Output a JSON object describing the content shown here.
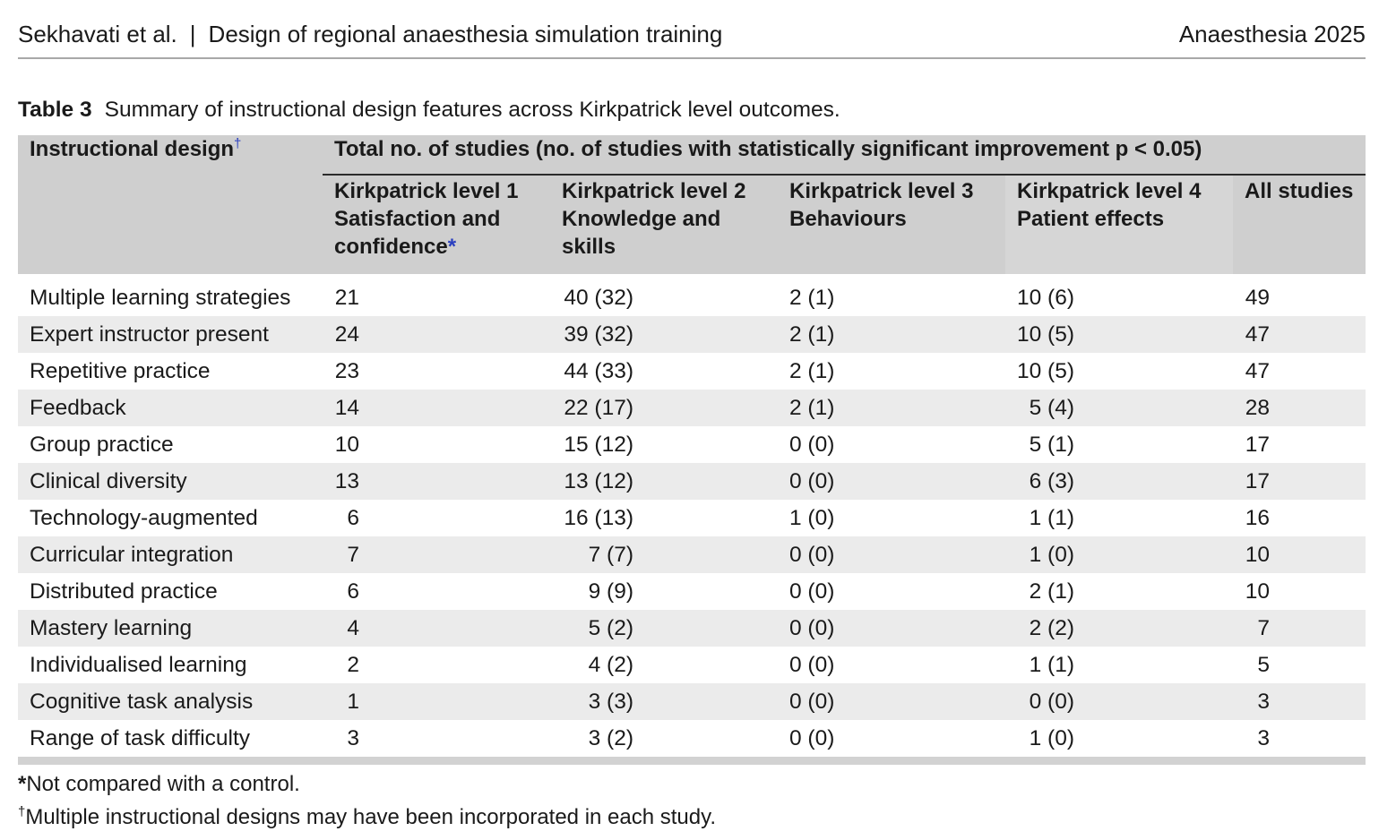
{
  "running_head": {
    "authors": "Sekhavati et al.",
    "separator": "|",
    "title": "Design of regional anaesthesia simulation training",
    "journal": "Anaesthesia 2025"
  },
  "caption": {
    "label": "Table 3",
    "text": "Summary of instructional design features across Kirkpatrick level outcomes."
  },
  "table": {
    "first_header": "Instructional design",
    "first_header_mark": "†",
    "group_header": "Total no. of studies (no. of studies with statistically significant improvement p < 0.05)",
    "columns": [
      {
        "line1": "Kirkpatrick level 1",
        "line2": "Satisfaction and",
        "line3": "confidence",
        "mark": "*"
      },
      {
        "line1": "Kirkpatrick level 2",
        "line2": "Knowledge and",
        "line3": "skills",
        "mark": ""
      },
      {
        "line1": "Kirkpatrick level 3",
        "line2": "Behaviours",
        "line3": "",
        "mark": ""
      },
      {
        "line1": "Kirkpatrick level 4",
        "line2": "Patient effects",
        "line3": "",
        "mark": ""
      },
      {
        "line1": "All studies",
        "line2": "",
        "line3": "",
        "mark": ""
      }
    ],
    "rows": [
      {
        "design": "Multiple learning strategies",
        "k1": "21",
        "k2": "40 (32)",
        "k3": "2 (1)",
        "k4": "10 (6)",
        "all": "49"
      },
      {
        "design": "Expert instructor present",
        "k1": "24",
        "k2": "39 (32)",
        "k3": "2 (1)",
        "k4": "10 (5)",
        "all": "47"
      },
      {
        "design": "Repetitive practice",
        "k1": "23",
        "k2": "44 (33)",
        "k3": "2 (1)",
        "k4": "10 (5)",
        "all": "47"
      },
      {
        "design": "Feedback",
        "k1": "14",
        "k2": "22 (17)",
        "k3": "2 (1)",
        "k4": "5 (4)",
        "all": "28"
      },
      {
        "design": "Group practice",
        "k1": "10",
        "k2": "15 (12)",
        "k3": "0 (0)",
        "k4": "5 (1)",
        "all": "17"
      },
      {
        "design": "Clinical diversity",
        "k1": "13",
        "k2": "13 (12)",
        "k3": "0 (0)",
        "k4": "6 (3)",
        "all": "17"
      },
      {
        "design": "Technology-augmented",
        "k1": "6",
        "k2": "16 (13)",
        "k3": "1 (0)",
        "k4": "1 (1)",
        "all": "16"
      },
      {
        "design": "Curricular integration",
        "k1": "7",
        "k2": "7 (7)",
        "k3": "0 (0)",
        "k4": "1 (0)",
        "all": "10"
      },
      {
        "design": "Distributed practice",
        "k1": "6",
        "k2": "9 (9)",
        "k3": "0 (0)",
        "k4": "2 (1)",
        "all": "10"
      },
      {
        "design": "Mastery learning",
        "k1": "4",
        "k2": "5 (2)",
        "k3": "0 (0)",
        "k4": "2 (2)",
        "all": "7"
      },
      {
        "design": "Individualised learning",
        "k1": "2",
        "k2": "4 (2)",
        "k3": "0 (0)",
        "k4": "1 (1)",
        "all": "5"
      },
      {
        "design": "Cognitive task analysis",
        "k1": "1",
        "k2": "3 (3)",
        "k3": "0 (0)",
        "k4": "0 (0)",
        "all": "3"
      },
      {
        "design": "Range of task difficulty",
        "k1": "3",
        "k2": "3 (2)",
        "k3": "0 (0)",
        "k4": "1 (0)",
        "all": "3"
      }
    ]
  },
  "footnotes": [
    {
      "symbol": "*",
      "text": "Not compared with a control."
    },
    {
      "symbol": "†",
      "text": "Multiple instructional designs may have been incorporated in each study."
    }
  ]
}
